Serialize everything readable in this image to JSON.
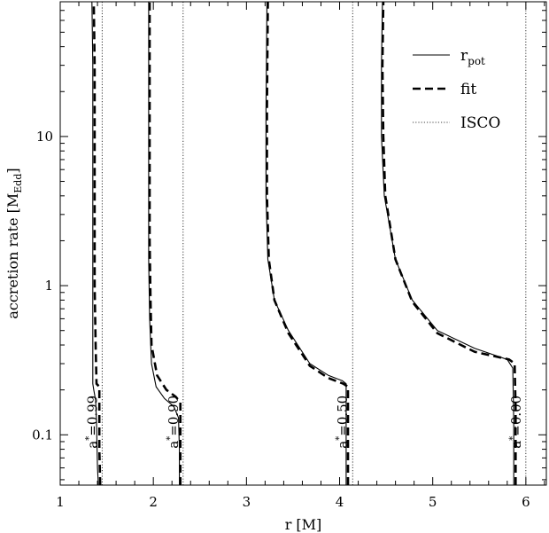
{
  "chart_data": {
    "type": "line",
    "xlabel": "r [M]",
    "ylabel": "accretion rate [M",
    "ylabel_sub": "Edd",
    "ylabel_end": "]",
    "xlim": [
      1,
      6.22
    ],
    "ylim": [
      0.046,
      80
    ],
    "y_scale": "log",
    "x_ticks": [
      1,
      2,
      3,
      4,
      5,
      6
    ],
    "x_tick_labels": [
      "1",
      "2",
      "3",
      "4",
      "5",
      "6"
    ],
    "y_ticks": [
      0.1,
      1,
      10
    ],
    "y_tick_labels": [
      "0.1",
      "1",
      "10"
    ],
    "legend": {
      "position": "top-right",
      "entries": [
        {
          "label": "r",
          "label_sub": "pot",
          "style": "solid"
        },
        {
          "label": "fit",
          "label_sub": "",
          "style": "dashed"
        },
        {
          "label": "ISCO",
          "label_sub": "",
          "style": "dotted"
        }
      ]
    },
    "series": [
      {
        "spin": "0.99",
        "isco": 1.45,
        "rpot": [
          [
            1.41,
            0.046
          ],
          [
            1.4,
            0.06
          ],
          [
            1.39,
            0.12
          ],
          [
            1.38,
            0.17
          ],
          [
            1.36,
            0.2
          ],
          [
            1.35,
            0.22
          ],
          [
            1.35,
            0.4
          ],
          [
            1.35,
            1
          ],
          [
            1.35,
            3
          ],
          [
            1.35,
            10
          ],
          [
            1.35,
            30
          ],
          [
            1.34,
            80
          ]
        ],
        "fit": [
          [
            1.43,
            0.046
          ],
          [
            1.42,
            0.08
          ],
          [
            1.42,
            0.21
          ],
          [
            1.39,
            0.22
          ],
          [
            1.38,
            0.4
          ],
          [
            1.37,
            1
          ],
          [
            1.37,
            3
          ],
          [
            1.37,
            10
          ],
          [
            1.37,
            30
          ],
          [
            1.36,
            80
          ]
        ]
      },
      {
        "spin": "0.90",
        "isco": 2.32,
        "rpot": [
          [
            2.28,
            0.046
          ],
          [
            2.28,
            0.08
          ],
          [
            2.27,
            0.13
          ],
          [
            2.22,
            0.155
          ],
          [
            2.12,
            0.175
          ],
          [
            2.03,
            0.21
          ],
          [
            1.98,
            0.3
          ],
          [
            1.96,
            0.6
          ],
          [
            1.95,
            1.5
          ],
          [
            1.95,
            5
          ],
          [
            1.95,
            20
          ],
          [
            1.95,
            80
          ]
        ],
        "fit": [
          [
            2.29,
            0.046
          ],
          [
            2.29,
            0.1
          ],
          [
            2.29,
            0.165
          ],
          [
            2.24,
            0.18
          ],
          [
            2.14,
            0.2
          ],
          [
            2.04,
            0.25
          ],
          [
            1.98,
            0.4
          ],
          [
            1.97,
            0.8
          ],
          [
            1.96,
            2
          ],
          [
            1.96,
            10
          ],
          [
            1.96,
            80
          ]
        ]
      },
      {
        "spin": "0.50",
        "isco": 4.14,
        "rpot": [
          [
            4.07,
            0.046
          ],
          [
            4.07,
            0.1
          ],
          [
            4.07,
            0.22
          ],
          [
            4.03,
            0.23
          ],
          [
            3.88,
            0.25
          ],
          [
            3.68,
            0.3
          ],
          [
            3.45,
            0.5
          ],
          [
            3.3,
            0.8
          ],
          [
            3.23,
            1.5
          ],
          [
            3.21,
            4
          ],
          [
            3.21,
            15
          ],
          [
            3.22,
            80
          ]
        ],
        "fit": [
          [
            4.09,
            0.046
          ],
          [
            4.09,
            0.12
          ],
          [
            4.09,
            0.21
          ],
          [
            4.04,
            0.22
          ],
          [
            3.88,
            0.24
          ],
          [
            3.68,
            0.29
          ],
          [
            3.45,
            0.48
          ],
          [
            3.3,
            0.8
          ],
          [
            3.24,
            1.5
          ],
          [
            3.22,
            4
          ],
          [
            3.22,
            15
          ],
          [
            3.23,
            80
          ]
        ]
      },
      {
        "spin": "0.00",
        "isco": 6.0,
        "rpot": [
          [
            5.87,
            0.046
          ],
          [
            5.87,
            0.12
          ],
          [
            5.86,
            0.28
          ],
          [
            5.8,
            0.32
          ],
          [
            5.45,
            0.38
          ],
          [
            5.05,
            0.5
          ],
          [
            4.78,
            0.8
          ],
          [
            4.6,
            1.5
          ],
          [
            4.48,
            4
          ],
          [
            4.45,
            10
          ],
          [
            4.45,
            30
          ],
          [
            4.46,
            80
          ]
        ],
        "fit": [
          [
            5.89,
            0.046
          ],
          [
            5.89,
            0.15
          ],
          [
            5.88,
            0.3
          ],
          [
            5.82,
            0.32
          ],
          [
            5.45,
            0.36
          ],
          [
            5.05,
            0.48
          ],
          [
            4.78,
            0.78
          ],
          [
            4.6,
            1.5
          ],
          [
            4.49,
            4
          ],
          [
            4.47,
            10
          ],
          [
            4.46,
            30
          ],
          [
            4.47,
            80
          ]
        ]
      }
    ],
    "spin_label_prefix": "a",
    "spin_label_sup": "*",
    "colors": {
      "line": "#000000",
      "background": "#ffffff"
    }
  }
}
